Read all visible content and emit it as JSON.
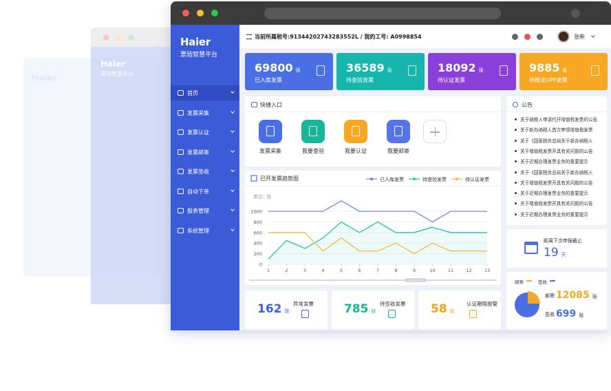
{
  "brand": {
    "name": "Haier",
    "subtitle": "票验智慧平台"
  },
  "unit": "张",
  "header": {
    "info": "当前所属税号:91344202743283552L / 我的工号: A0998854",
    "user": "张新"
  },
  "sidebar": {
    "menu": [
      "首页",
      "发票采集",
      "发票认证",
      "发票邮寄",
      "发票签收",
      "自动下单",
      "报表管理",
      "系统管理"
    ]
  },
  "stats": [
    {
      "value": 69800,
      "label": "已入库发票",
      "color": "#4a6fe3"
    },
    {
      "value": 36589,
      "label": "待查验发票",
      "color": "#17b6ad"
    },
    {
      "value": 18092,
      "label": "待认证发票",
      "color": "#8a3fd8"
    },
    {
      "value": 9885,
      "label": "待推送UPP发票",
      "color": "#f6a723"
    }
  ],
  "quick": {
    "title": "快捷入口",
    "items": [
      {
        "label": "发票采集",
        "color": "#4a6fe3"
      },
      {
        "label": "我要查验",
        "color": "#17b69c"
      },
      {
        "label": "我要认证",
        "color": "#f6a723"
      },
      {
        "label": "我要邮寄",
        "color": "#5574e6"
      }
    ]
  },
  "notices": {
    "title": "公告",
    "items": [
      "关于纳税人申请代开增值税发票的公告",
      "关于新办纳税人首次申领增值税发票",
      "关于《国家税务总局关于新办纳税人",
      "关于增值税发票开具有关问题的公告",
      "关于近期办理发票业务的重要提示",
      "关于《国家税务总局关于新办纳税人",
      "关于增值税发票开具有关问题的公告",
      "关于近期办理发票业务的重要提示",
      "关于增值税发票开具有关问题的公告",
      "关于近期办理发票业务的重要提示"
    ]
  },
  "countdown": {
    "label": "距离下次申报截止",
    "value": 19,
    "unit": "天"
  },
  "trend_chart": {
    "type": "line",
    "title": "已开发票趋势图",
    "unit_label": "单位:",
    "x": [
      1,
      2,
      3,
      4,
      5,
      6,
      7,
      8,
      9,
      10,
      11,
      12,
      13
    ],
    "xlim": [
      1,
      13
    ],
    "xticks": [
      1,
      2,
      3,
      4,
      5,
      6,
      7,
      8,
      9,
      10,
      11,
      12,
      13
    ],
    "ylim": [
      0,
      1200
    ],
    "yticks": [
      0,
      200,
      400,
      600,
      800,
      1000
    ],
    "grid": true,
    "series": [
      {
        "name": "已入库发票",
        "color": "#6a85e6",
        "values": [
          1000,
          1000,
          1000,
          1000,
          1200,
          1000,
          1000,
          1000,
          1000,
          800,
          1000,
          1000,
          1000
        ]
      },
      {
        "name": "待查验发票",
        "color": "#22c3a6",
        "values": [
          100,
          450,
          300,
          500,
          800,
          600,
          800,
          600,
          600,
          700,
          600,
          600,
          600
        ]
      },
      {
        "name": "待认证发票",
        "color": "#f5b83d",
        "values": [
          600,
          600,
          600,
          250,
          500,
          250,
          250,
          400,
          200,
          400,
          250,
          250,
          250
        ]
      }
    ]
  },
  "bottom_stats": [
    {
      "value": 162,
      "label": "异常发票",
      "color": "#3f63d8"
    },
    {
      "value": 785,
      "label": "待签收发票",
      "color": "#17b69c"
    },
    {
      "value": 58,
      "label": "认证期限报警",
      "color": "#f0a31c"
    }
  ],
  "mail": {
    "legend": [
      "邮寄",
      "签收"
    ],
    "items": [
      {
        "label": "邮寄",
        "value": 12085,
        "color": "#f6a723"
      },
      {
        "label": "签收",
        "value": 699,
        "color": "#4a6fe3"
      }
    ]
  }
}
